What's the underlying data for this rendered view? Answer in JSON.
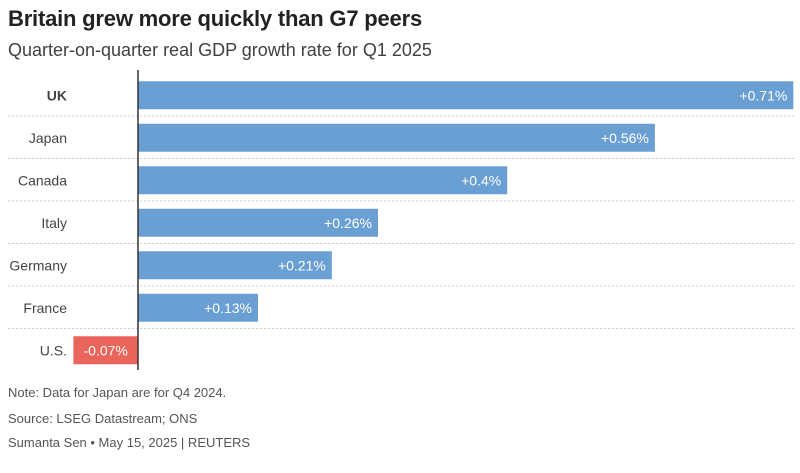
{
  "title": "Britain grew more quickly than G7 peers",
  "subtitle": "Quarter-on-quarter real GDP growth rate for Q1 2025",
  "footer": {
    "note": "Note: Data for Japan are for Q4 2024.",
    "source": "Source: LSEG Datastream; ONS",
    "byline": "Sumanta Sen • May 15, 2025 | REUTERS"
  },
  "colors": {
    "positive": "#6a9fd4",
    "negative": "#e9645a",
    "grid": "#cccccc",
    "axis": "#333333"
  },
  "chart_data": {
    "type": "bar",
    "orientation": "horizontal",
    "title": "Britain grew more quickly than G7 peers",
    "subtitle": "Quarter-on-quarter real GDP growth rate for Q1 2025",
    "categories": [
      "UK",
      "Japan",
      "Canada",
      "Italy",
      "Germany",
      "France",
      "U.S."
    ],
    "highlight": "UK",
    "values": [
      0.71,
      0.56,
      0.4,
      0.26,
      0.21,
      0.13,
      -0.07
    ],
    "labels": [
      "+0.71%",
      "+0.56%",
      "+0.4%",
      "+0.26%",
      "+0.21%",
      "+0.13%",
      "-0.07%"
    ],
    "xlim": [
      -0.07,
      0.71
    ],
    "grid": "dotted horizontal separators",
    "legend": "none"
  }
}
